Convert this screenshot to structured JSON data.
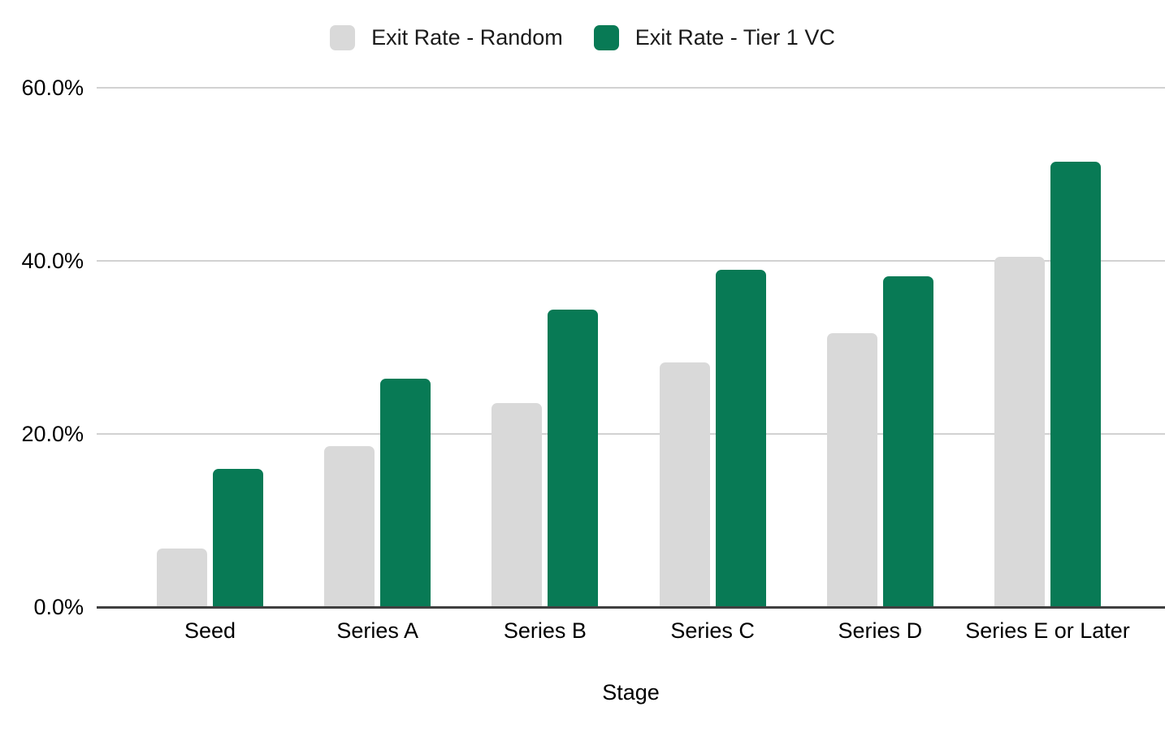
{
  "chart_data": {
    "type": "bar",
    "title": "",
    "xlabel": "Stage",
    "ylabel": "",
    "categories": [
      "Seed",
      "Series A",
      "Series B",
      "Series C",
      "Series D",
      "Series E or Later"
    ],
    "series": [
      {
        "name": "Exit Rate - Random",
        "color": "#d9d9d9",
        "values": [
          6.8,
          18.6,
          23.6,
          28.3,
          31.6,
          40.5
        ]
      },
      {
        "name": "Exit Rate - Tier 1 VC",
        "color": "#087a55",
        "values": [
          16.0,
          26.4,
          34.4,
          39.0,
          38.2,
          51.5
        ]
      }
    ],
    "units": "%",
    "ylim": [
      0,
      60
    ],
    "yticks": [
      0,
      20,
      40,
      60
    ],
    "ytick_labels": [
      "0.0%",
      "20.0%",
      "40.0%",
      "60.0%"
    ],
    "grid": "horizontal",
    "legend_position": "top"
  },
  "colors": {
    "background": "#ffffff",
    "bar_random": "#d9d9d9",
    "bar_tier1_vc": "#087a55",
    "gridline": "#d2d2d2",
    "axis_line": "#404040",
    "text": "#000000"
  }
}
